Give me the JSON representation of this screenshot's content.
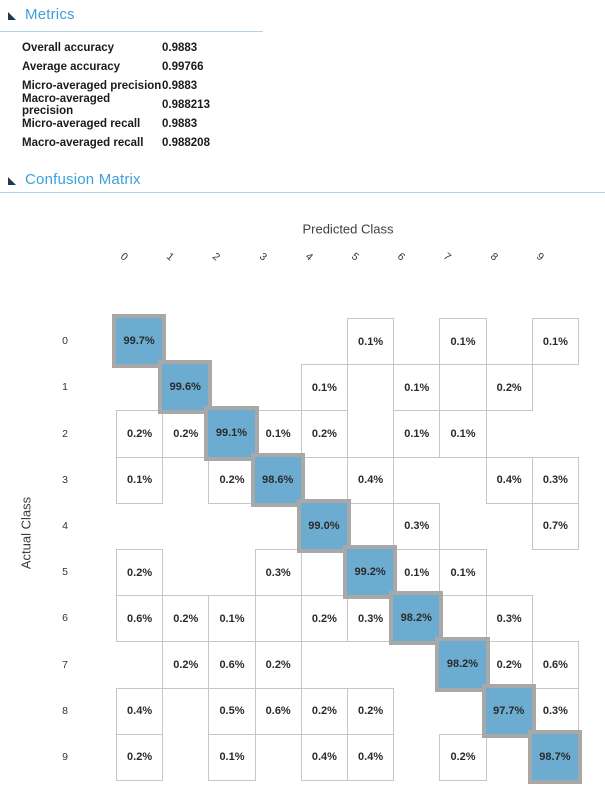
{
  "metrics_section": {
    "title": "Metrics",
    "rows": [
      {
        "label": "Overall accuracy",
        "value": "0.9883"
      },
      {
        "label": "Average accuracy",
        "value": "0.99766"
      },
      {
        "label": "Micro-averaged precision",
        "value": "0.9883"
      },
      {
        "label": "Macro-averaged precision",
        "value": "0.988213"
      },
      {
        "label": "Micro-averaged recall",
        "value": "0.9883"
      },
      {
        "label": "Macro-averaged recall",
        "value": "0.988208"
      }
    ]
  },
  "confusion_section": {
    "title": "Confusion Matrix"
  },
  "chart_data": {
    "type": "heatmap",
    "title": "Confusion Matrix",
    "xlabel": "Predicted Class",
    "ylabel": "Actual Class",
    "x_categories": [
      "0",
      "1",
      "2",
      "3",
      "4",
      "5",
      "6",
      "7",
      "8",
      "9"
    ],
    "y_categories": [
      "0",
      "1",
      "2",
      "3",
      "4",
      "5",
      "6",
      "7",
      "8",
      "9"
    ],
    "legend": "none",
    "diagonal_highlighted": true,
    "cells_display": [
      [
        "99.7%",
        "",
        "",
        "",
        "",
        "0.1%",
        "",
        "0.1%",
        "",
        "0.1%"
      ],
      [
        "",
        "99.6%",
        "",
        "",
        "0.1%",
        "",
        "0.1%",
        "",
        "0.2%",
        ""
      ],
      [
        "0.2%",
        "0.2%",
        "99.1%",
        "0.1%",
        "0.2%",
        "",
        "0.1%",
        "0.1%",
        "",
        ""
      ],
      [
        "0.1%",
        "",
        "0.2%",
        "98.6%",
        "",
        "0.4%",
        "",
        "",
        "0.4%",
        "0.3%"
      ],
      [
        "",
        "",
        "",
        "",
        "99.0%",
        "",
        "0.3%",
        "",
        "",
        "0.7%"
      ],
      [
        "0.2%",
        "",
        "",
        "0.3%",
        "",
        "99.2%",
        "0.1%",
        "0.1%",
        "",
        ""
      ],
      [
        "0.6%",
        "0.2%",
        "0.1%",
        "",
        "0.2%",
        "0.3%",
        "98.2%",
        "",
        "0.3%",
        ""
      ],
      [
        "",
        "0.2%",
        "0.6%",
        "0.2%",
        "",
        "",
        "",
        "98.2%",
        "0.2%",
        "0.6%"
      ],
      [
        "0.4%",
        "",
        "0.5%",
        "0.6%",
        "0.2%",
        "0.2%",
        "",
        "",
        "97.7%",
        "0.3%"
      ],
      [
        "0.2%",
        "",
        "0.1%",
        "",
        "0.4%",
        "0.4%",
        "",
        "0.2%",
        "",
        "98.7%"
      ]
    ],
    "values_percent": [
      [
        99.7,
        null,
        null,
        null,
        null,
        0.1,
        null,
        0.1,
        null,
        0.1
      ],
      [
        null,
        99.6,
        null,
        null,
        0.1,
        null,
        0.1,
        null,
        0.2,
        null
      ],
      [
        0.2,
        0.2,
        99.1,
        0.1,
        0.2,
        null,
        0.1,
        0.1,
        null,
        null
      ],
      [
        0.1,
        null,
        0.2,
        98.6,
        null,
        0.4,
        null,
        null,
        0.4,
        0.3
      ],
      [
        null,
        null,
        null,
        null,
        99.0,
        null,
        0.3,
        null,
        null,
        0.7
      ],
      [
        0.2,
        null,
        null,
        0.3,
        null,
        99.2,
        0.1,
        0.1,
        null,
        null
      ],
      [
        0.6,
        0.2,
        0.1,
        null,
        0.2,
        0.3,
        98.2,
        null,
        0.3,
        null
      ],
      [
        null,
        0.2,
        0.6,
        0.2,
        null,
        null,
        null,
        98.2,
        0.2,
        0.6
      ],
      [
        0.4,
        null,
        0.5,
        0.6,
        0.2,
        0.2,
        null,
        null,
        97.7,
        0.3
      ],
      [
        0.2,
        null,
        0.1,
        null,
        0.4,
        0.4,
        null,
        0.2,
        null,
        98.7
      ]
    ]
  },
  "icons": {
    "collapse": "triangle-collapse-icon"
  },
  "colors": {
    "accent_blue": "#3BA1DA",
    "header_rule": "#AFD4EA",
    "triangle": "#1E3A52",
    "diag_fill": "#6CACD1",
    "diag_border": "#A8A8A8",
    "cell_border": "#C7C7C7",
    "cell_text": "#2B2B2B"
  }
}
